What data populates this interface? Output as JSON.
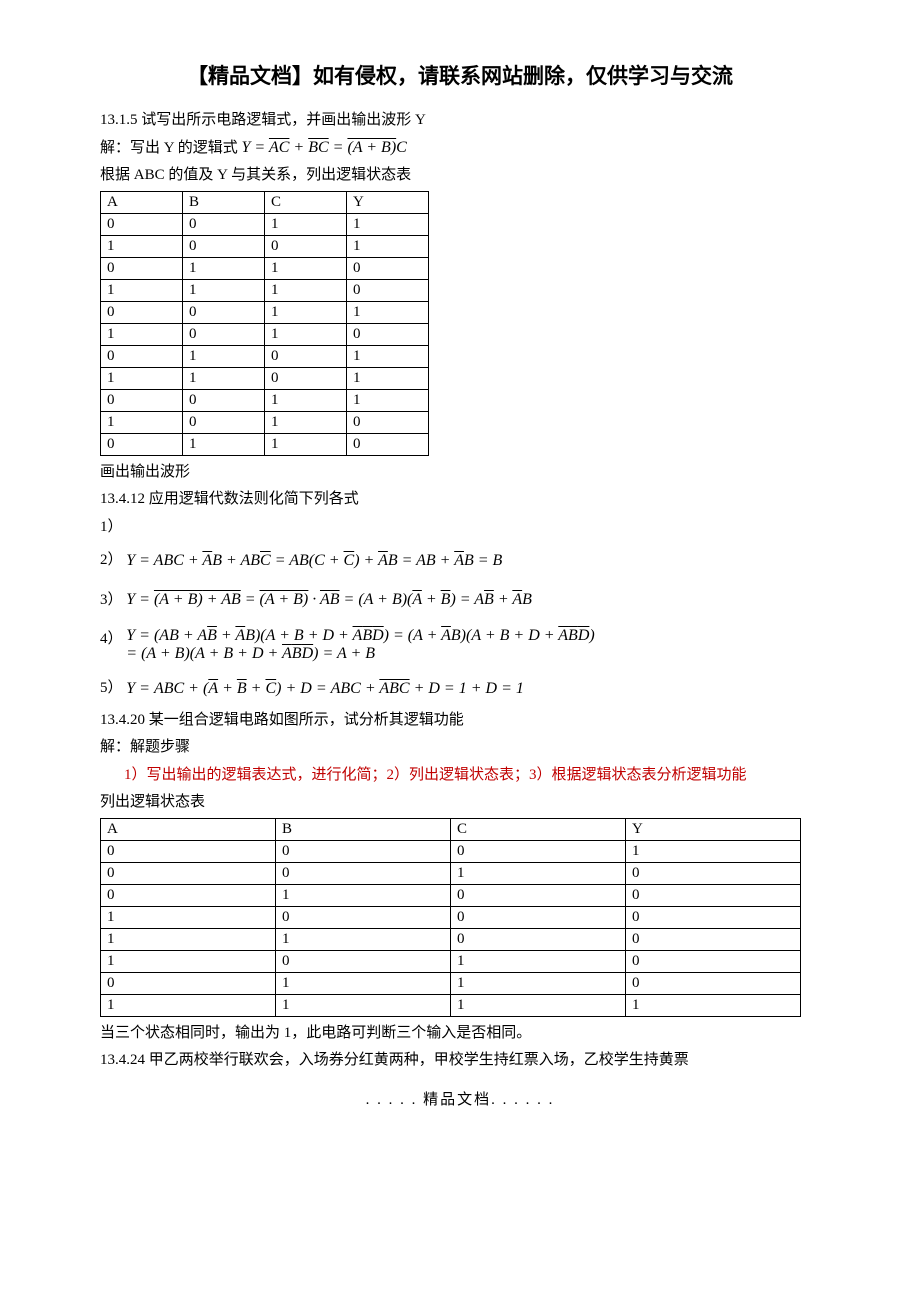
{
  "header": {
    "title": "【精品文档】如有侵权，请联系网站删除，仅供学习与交流"
  },
  "p1": "13.1.5 试写出所示电路逻辑式，并画出输出波形 Y",
  "p2_pre": "解：写出 Y 的逻辑式",
  "eq1_a": "Y = ",
  "eq1_b": "AC",
  "eq1_c": " + ",
  "eq1_d": "BC",
  "eq1_e": " = ",
  "eq1_f": "(A + B)",
  "eq1_g": "C",
  "p3": "根据 ABC 的值及 Y 与其关系，列出逻辑状态表",
  "table1": {
    "header": [
      "A",
      "B",
      "C",
      "Y"
    ],
    "rows": [
      [
        "0",
        "0",
        "1",
        "1"
      ],
      [
        "1",
        "0",
        "0",
        "1"
      ],
      [
        "0",
        "1",
        "1",
        "0"
      ],
      [
        "1",
        "1",
        "1",
        "0"
      ],
      [
        "0",
        "0",
        "1",
        "1"
      ],
      [
        "1",
        "0",
        "1",
        "0"
      ],
      [
        "0",
        "1",
        "0",
        "1"
      ],
      [
        "1",
        "1",
        "0",
        "1"
      ],
      [
        "0",
        "0",
        "1",
        "1"
      ],
      [
        "1",
        "0",
        "1",
        "0"
      ],
      [
        "0",
        "1",
        "1",
        "0"
      ]
    ]
  },
  "p4": "画出输出波形",
  "p5": "13.4.12 应用逻辑代数法则化简下列各式",
  "p6": "1）",
  "p7": "2）",
  "eq2": "Y = ABC + <span class=\"ov\">A</span>B + AB<span class=\"ov\">C</span> = AB(C + <span class=\"ov\">C</span>) + <span class=\"ov\">A</span>B = AB + <span class=\"ov\">A</span>B = B",
  "p8": "3）",
  "eq3": "Y = <span class=\"ov\"><span class=\"ov\" style=\"padding-bottom:1px\">(A + B)</span> + AB</span> = <span class=\"ov\"><span class=\"ov\" style=\"padding-bottom:1px\">(A + B)</span></span> · <span class=\"ov\">AB</span> = (A + B)(<span class=\"ov\">A</span> + <span class=\"ov\">B</span>) = A<span class=\"ov\">B</span> + <span class=\"ov\">A</span>B",
  "p9": "4）",
  "eq4a": "Y = (AB + A<span class=\"ov\">B</span> + <span class=\"ov\">A</span>B)(A + B + D + <span class=\"ov\">A</span><span class=\"ov\">B</span><span class=\"ov\">D</span>) = (A + <span class=\"ov\">A</span>B)(A + B + D + <span class=\"ov\">A</span><span class=\"ov\">B</span><span class=\"ov\">D</span>)",
  "eq4b": "= (A + B)(A + B + D + <span class=\"ov\">A</span><span class=\"ov\">B</span><span class=\"ov\">D</span>) = A + B",
  "p10": "5）",
  "eq5": "Y&nbsp;=&nbsp;ABC + (<span class=\"ov\">A</span>&nbsp;+&nbsp;<span class=\"ov\">B</span>&nbsp;+&nbsp;<span class=\"ov\">C</span>) + D&nbsp;=&nbsp;ABC + <span class=\"ov\">ABC</span> + D&nbsp;=&nbsp;1&nbsp;+&nbsp;D&nbsp;=&nbsp;1",
  "p11": "13.4.20 某一组合逻辑电路如图所示，试分析其逻辑功能",
  "p12": "解：解题步骤",
  "p13": "1）写出输出的逻辑表达式，进行化简；2）列出逻辑状态表；3）根据逻辑状态表分析逻辑功能",
  "p14": "列出逻辑状态表",
  "table2": {
    "header": [
      "A",
      "B",
      "C",
      "Y"
    ],
    "rows": [
      [
        "0",
        "0",
        "0",
        "1"
      ],
      [
        "0",
        "0",
        "1",
        "0"
      ],
      [
        "0",
        "1",
        "0",
        "0"
      ],
      [
        "1",
        "0",
        "0",
        "0"
      ],
      [
        "1",
        "1",
        "0",
        "0"
      ],
      [
        "1",
        "0",
        "1",
        "0"
      ],
      [
        "0",
        "1",
        "1",
        "0"
      ],
      [
        "1",
        "1",
        "1",
        "1"
      ]
    ]
  },
  "p15": "当三个状态相同时，输出为 1，此电路可判断三个输入是否相同。",
  "p16": "13.4.24 甲乙两校举行联欢会，入场券分红黄两种，甲校学生持红票入场，乙校学生持黄票",
  "footer": ". . . . . 精品文档. . . . . ."
}
